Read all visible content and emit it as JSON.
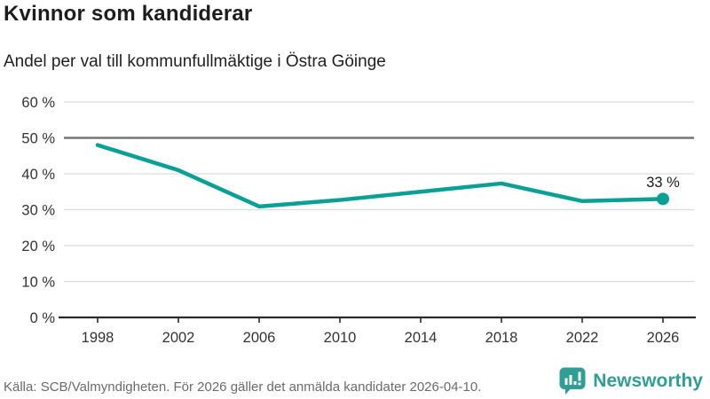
{
  "header": {
    "title": "Kvinnor som kandiderar",
    "subtitle": "Andel per val till kommunfullmäktige i Östra Göinge"
  },
  "chart_data": {
    "type": "line",
    "title": "Kvinnor som kandiderar",
    "subtitle": "Andel per val till kommunfullmäktige i Östra Göinge",
    "categories": [
      "1998",
      "2002",
      "2006",
      "2010",
      "2014",
      "2018",
      "2022",
      "2026"
    ],
    "values": [
      48,
      41,
      30.9,
      32.7,
      35,
      37.3,
      32.4,
      33
    ],
    "ylim": [
      0,
      60
    ],
    "yticks": [
      {
        "value": 0,
        "label": "0 %"
      },
      {
        "value": 10,
        "label": "10 %"
      },
      {
        "value": 20,
        "label": "20 %"
      },
      {
        "value": 30,
        "label": "30 %"
      },
      {
        "value": 40,
        "label": "40 %"
      },
      {
        "value": 50,
        "label": "50 %"
      },
      {
        "value": 60,
        "label": "60 %"
      }
    ],
    "reference_line": {
      "value": 50
    },
    "end_label": "33 %",
    "grid": true,
    "legend": "none"
  },
  "footer": {
    "source": "Källa: SCB/Valmyndigheten. För 2026 gäller det anmälda kandidater 2026-04-10.",
    "brand": "Newsworthy"
  },
  "colors": {
    "line": "#0aa096",
    "grid": "#dcdcdc",
    "reference": "#757575",
    "axis": "#2b2b2b",
    "tick_text": "#333333",
    "annotation_text": "#1a1a1a",
    "brand_teal": "#2f9e94"
  }
}
